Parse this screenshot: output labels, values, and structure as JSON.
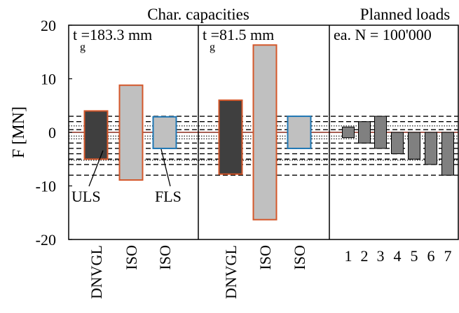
{
  "chart_data": {
    "type": "bar",
    "ylabel": "F [MN]",
    "ylim": [
      -20,
      20
    ],
    "yticks": [
      -20,
      -10,
      0,
      10,
      20
    ],
    "grid": false,
    "colors": {
      "dnvgl_fill": "#3f3f3f",
      "iso_fill": "#c0c0c0",
      "load_fill": "#808080",
      "uls_edge": "#d4572a",
      "fls_edge": "#1f77b4",
      "zero_line": "#8b2a1a"
    },
    "dashed_lines": [
      3,
      2,
      0.5,
      -2,
      -3,
      -4,
      -5,
      -6,
      -8
    ],
    "dotted_lines": [
      1.2,
      -0.7,
      -1.2,
      -5.2
    ],
    "panels": [
      {
        "header": "Char. capacities",
        "corner_label": "t  =183.3 mm",
        "corner_sub": "g",
        "categories": [
          "DNVGL",
          "ISO",
          "ISO"
        ],
        "bars": [
          {
            "category": "DNVGL",
            "low": -5,
            "high": 4,
            "fill": "dnvgl_fill",
            "edge": "uls_edge"
          },
          {
            "category": "ISO",
            "low": -8.9,
            "high": 8.8,
            "fill": "iso_fill",
            "edge": "uls_edge"
          },
          {
            "category": "ISO",
            "low": -3,
            "high": 2.9,
            "fill": "iso_fill",
            "edge": "fls_edge"
          }
        ],
        "annotations": [
          {
            "text": "ULS",
            "target": 0
          },
          {
            "text": "FLS",
            "target": 2
          }
        ]
      },
      {
        "header": "",
        "corner_label": "t  =81.5 mm",
        "corner_sub": "g",
        "categories": [
          "DNVGL",
          "ISO",
          "ISO"
        ],
        "bars": [
          {
            "category": "DNVGL",
            "low": -7.8,
            "high": 6,
            "fill": "dnvgl_fill",
            "edge": "uls_edge"
          },
          {
            "category": "ISO",
            "low": -16.3,
            "high": 16.3,
            "fill": "iso_fill",
            "edge": "uls_edge"
          },
          {
            "category": "ISO",
            "low": -3,
            "high": 3,
            "fill": "iso_fill",
            "edge": "fls_edge"
          }
        ],
        "annotations": []
      },
      {
        "header": "Planned loads",
        "corner_label": "ea. N = 100'000",
        "corner_sub": "",
        "categories": [
          "1",
          "2",
          "3",
          "4",
          "5",
          "6",
          "7"
        ],
        "bars": [
          {
            "category": "1",
            "low": -1,
            "high": 1,
            "fill": "load_fill",
            "edge": "none"
          },
          {
            "category": "2",
            "low": -2,
            "high": 2,
            "fill": "load_fill",
            "edge": "none"
          },
          {
            "category": "3",
            "low": -3,
            "high": 3,
            "fill": "load_fill",
            "edge": "none"
          },
          {
            "category": "4",
            "low": -4,
            "high": 0,
            "fill": "load_fill",
            "edge": "none"
          },
          {
            "category": "5",
            "low": -5,
            "high": 0,
            "fill": "load_fill",
            "edge": "none"
          },
          {
            "category": "6",
            "low": -6,
            "high": 0,
            "fill": "load_fill",
            "edge": "none"
          },
          {
            "category": "7",
            "low": -8,
            "high": 0,
            "fill": "load_fill",
            "edge": "none"
          }
        ],
        "annotations": []
      }
    ]
  }
}
